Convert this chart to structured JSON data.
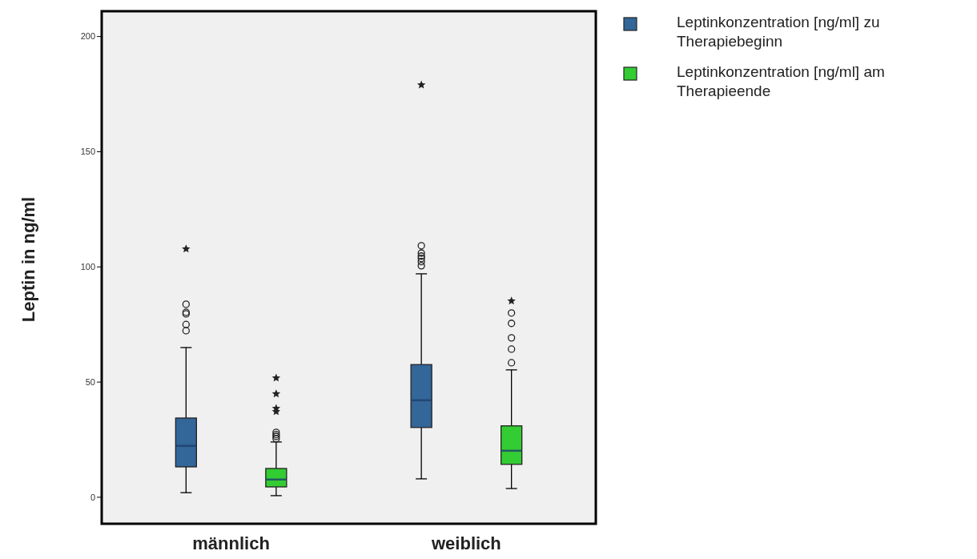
{
  "chart_data": {
    "type": "box",
    "ylabel": "Leptin in ng/ml",
    "categories": [
      "männlich",
      "weiblich"
    ],
    "ylim": [
      -11.5,
      211
    ],
    "yticks": [
      0,
      50,
      100,
      150,
      200
    ],
    "grid": false,
    "legend": "top right",
    "series": [
      {
        "name": "Leptinkonzentration [ng/ml] zu Therapiebeginn",
        "color": "#336699",
        "boxes": [
          {
            "low": 2,
            "q1": 13.2,
            "median": 22.3,
            "q3": 34.4,
            "high": 65,
            "outliers": [
              72.3,
              75,
              79.6,
              80.3,
              83.8,
              107.8
            ]
          },
          {
            "low": 8,
            "q1": 30.3,
            "median": 42.1,
            "q3": 57.6,
            "high": 97,
            "outliers": [
              100.5,
              102.3,
              103.7,
              104.7,
              106,
              109.2,
              179
            ]
          }
        ]
      },
      {
        "name": "Leptinkonzentration [ng/ml] am Therapieende",
        "color": "#33cc33",
        "boxes": [
          {
            "low": 0.7,
            "q1": 4.5,
            "median": 7.7,
            "q3": 12.5,
            "high": 24,
            "outliers": [
              25.4,
              26.4,
              27.2,
              28.2,
              37.2,
              38.6,
              44.9,
              51.8
            ]
          },
          {
            "low": 3.8,
            "q1": 14.3,
            "median": 20.2,
            "q3": 31,
            "high": 55.3,
            "outliers": [
              58.4,
              64.3,
              69.2,
              75.5,
              80,
              85.2
            ]
          }
        ]
      }
    ]
  }
}
